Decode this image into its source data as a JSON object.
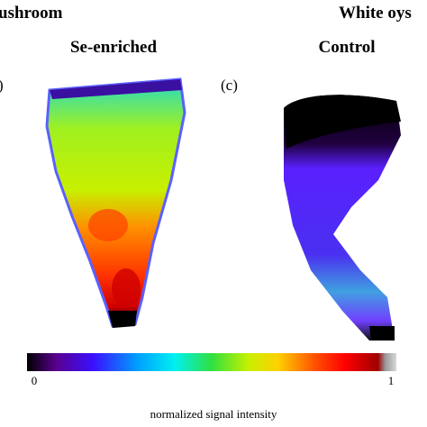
{
  "header": {
    "left_title": "ushroom",
    "right_title": "White oys"
  },
  "panels": [
    {
      "label": ")",
      "title": "Se-enriched"
    },
    {
      "label": "(c)",
      "title": "Control"
    }
  ],
  "colorbar": {
    "min_label": "0",
    "max_label": "1",
    "label": "normalized signal intensity"
  }
}
